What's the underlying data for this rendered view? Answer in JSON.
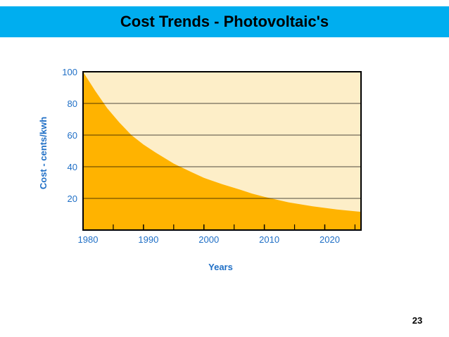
{
  "slide": {
    "title": "Cost Trends - Photovoltaic's",
    "page_number": "23",
    "title_bar_color": "#00aeef"
  },
  "chart_data": {
    "type": "area",
    "title": "",
    "xlabel": "Years",
    "ylabel": "Cost - cents/kwh",
    "x_ticks": [
      "1980",
      "1990",
      "2000",
      "2010",
      "2020"
    ],
    "y_ticks": [
      "20",
      "40",
      "60",
      "80",
      "100"
    ],
    "xlim": [
      1980,
      2026
    ],
    "ylim": [
      0,
      100
    ],
    "grid": true,
    "series": [
      {
        "x": [
          1980,
          1982,
          1984,
          1986,
          1988,
          1990,
          1992,
          1995,
          1998,
          2000,
          2003,
          2006,
          2008,
          2010,
          2014,
          2018,
          2022,
          2026
        ],
        "values": [
          100,
          88,
          77,
          68,
          60,
          54,
          49,
          42,
          36.5,
          33,
          29,
          25.5,
          23,
          21,
          17.5,
          15,
          13,
          11.5
        ],
        "fill": "#ffb300"
      }
    ],
    "colors": {
      "plot_background": "#fdeec8",
      "area_fill": "#ffb300",
      "axis_text": "#1f6fc6",
      "grid": "#000000"
    }
  }
}
